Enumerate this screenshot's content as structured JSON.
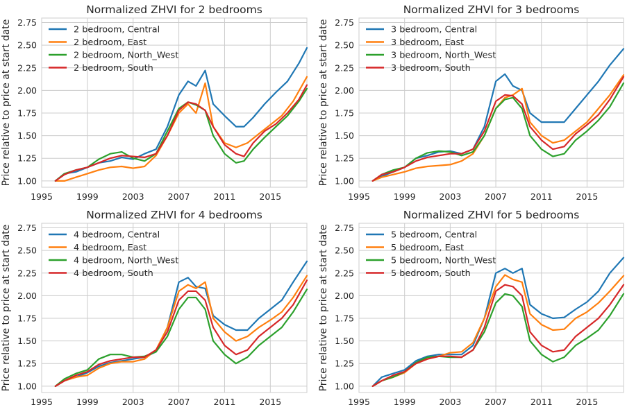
{
  "chart_data": [
    {
      "type": "line",
      "title": "Normalized ZHVI for 2 bedrooms",
      "ylabel": "Price relative to price at start date",
      "xlim": [
        1995,
        2018.2
      ],
      "ylim": [
        0.93,
        2.8
      ],
      "xticks": [
        1995,
        1999,
        2003,
        2007,
        2011,
        2015
      ],
      "yticks": [
        1.0,
        1.25,
        1.5,
        1.75,
        2.0,
        2.25,
        2.5,
        2.75
      ],
      "grid": true,
      "legend": "top-left",
      "series": [
        {
          "name": "2 bedroom, Central",
          "color": "#1f77b4",
          "x": [
            1996.2,
            1997,
            1998,
            1999,
            2000,
            2001,
            2002,
            2003,
            2004,
            2005,
            2006,
            2007,
            2007.8,
            2008.5,
            2009.3,
            2010,
            2011,
            2012,
            2012.7,
            2013.5,
            2014.5,
            2015.5,
            2016.5,
            2017.5,
            2018.2
          ],
          "y": [
            1.0,
            1.08,
            1.1,
            1.15,
            1.2,
            1.22,
            1.26,
            1.24,
            1.3,
            1.35,
            1.6,
            1.95,
            2.1,
            2.05,
            2.22,
            1.85,
            1.72,
            1.6,
            1.6,
            1.7,
            1.85,
            1.98,
            2.1,
            2.3,
            2.47
          ]
        },
        {
          "name": "2 bedroom, East",
          "color": "#ff7f0e",
          "x": [
            1996.2,
            1997,
            1998,
            1999,
            2000,
            2001,
            2002,
            2003,
            2004,
            2005,
            2006,
            2007,
            2007.8,
            2008.5,
            2009.3,
            2010,
            2011,
            2012,
            2013,
            2014,
            2015,
            2016,
            2017,
            2018.2
          ],
          "y": [
            1.0,
            1.0,
            1.04,
            1.08,
            1.12,
            1.15,
            1.16,
            1.14,
            1.16,
            1.28,
            1.5,
            1.75,
            1.85,
            1.75,
            2.08,
            1.6,
            1.42,
            1.37,
            1.42,
            1.52,
            1.62,
            1.72,
            1.88,
            2.15
          ]
        },
        {
          "name": "2 bedroom, North_West",
          "color": "#2ca02c",
          "x": [
            1996.2,
            1997,
            1998,
            1999,
            2000,
            2001,
            2002,
            2003,
            2004,
            2005,
            2006,
            2007,
            2007.8,
            2008.5,
            2009.3,
            2010,
            2011,
            2012,
            2012.7,
            2013.5,
            2014.5,
            2015.5,
            2016.5,
            2017.5,
            2018.2
          ],
          "y": [
            1.0,
            1.08,
            1.12,
            1.15,
            1.24,
            1.3,
            1.32,
            1.25,
            1.22,
            1.3,
            1.55,
            1.8,
            1.87,
            1.84,
            1.78,
            1.5,
            1.3,
            1.2,
            1.22,
            1.35,
            1.48,
            1.6,
            1.72,
            1.88,
            2.02
          ]
        },
        {
          "name": "2 bedroom, South",
          "color": "#d62728",
          "x": [
            1996.2,
            1997,
            1998,
            1999,
            2000,
            2001,
            2002,
            2003,
            2004,
            2005,
            2006,
            2007,
            2007.8,
            2008.5,
            2009.3,
            2010,
            2011,
            2012,
            2012.7,
            2013.5,
            2014.5,
            2015.5,
            2016.5,
            2017.5,
            2018.2
          ],
          "y": [
            1.0,
            1.07,
            1.12,
            1.15,
            1.2,
            1.25,
            1.28,
            1.27,
            1.26,
            1.3,
            1.5,
            1.78,
            1.87,
            1.85,
            1.78,
            1.6,
            1.4,
            1.3,
            1.27,
            1.42,
            1.55,
            1.63,
            1.75,
            1.9,
            2.06
          ]
        }
      ]
    },
    {
      "type": "line",
      "title": "Normalized ZHVI for 3 bedrooms",
      "ylabel": "Price relative to price at start date",
      "xlim": [
        1995,
        2018.2
      ],
      "ylim": [
        0.93,
        2.8
      ],
      "xticks": [
        1995,
        1999,
        2003,
        2007,
        2011,
        2015
      ],
      "yticks": [
        1.0,
        1.25,
        1.5,
        1.75,
        2.0,
        2.25,
        2.5,
        2.75
      ],
      "grid": true,
      "legend": "top-left",
      "series": [
        {
          "name": "3 bedroom, Central",
          "color": "#1f77b4",
          "x": [
            1996.2,
            1997,
            1998,
            1999,
            2000,
            2001,
            2002,
            2003,
            2004,
            2005,
            2006,
            2007,
            2007.8,
            2008.5,
            2009.3,
            2010,
            2011,
            2012,
            2013,
            2014,
            2015,
            2016,
            2017,
            2018.2
          ],
          "y": [
            1.0,
            1.05,
            1.1,
            1.15,
            1.25,
            1.28,
            1.32,
            1.33,
            1.3,
            1.35,
            1.6,
            2.1,
            2.18,
            2.05,
            2.0,
            1.75,
            1.65,
            1.65,
            1.65,
            1.8,
            1.95,
            2.1,
            2.28,
            2.46
          ]
        },
        {
          "name": "3 bedroom, East",
          "color": "#ff7f0e",
          "x": [
            1996.2,
            1997,
            1998,
            1999,
            2000,
            2001,
            2002,
            2003,
            2004,
            2005,
            2006,
            2007,
            2007.8,
            2008.5,
            2009.3,
            2010,
            2011,
            2012,
            2013,
            2014,
            2015,
            2016,
            2017,
            2018.2
          ],
          "y": [
            1.0,
            1.04,
            1.07,
            1.1,
            1.14,
            1.16,
            1.17,
            1.18,
            1.22,
            1.3,
            1.5,
            1.8,
            1.92,
            1.95,
            2.02,
            1.65,
            1.5,
            1.42,
            1.45,
            1.55,
            1.65,
            1.8,
            1.95,
            2.17
          ]
        },
        {
          "name": "3 bedroom, North_West",
          "color": "#2ca02c",
          "x": [
            1996.2,
            1997,
            1998,
            1999,
            2000,
            2001,
            2002,
            2003,
            2004,
            2005,
            2006,
            2007,
            2007.8,
            2008.5,
            2009.3,
            2010,
            2011,
            2012,
            2013,
            2014,
            2015,
            2016,
            2017,
            2018.2
          ],
          "y": [
            1.0,
            1.07,
            1.12,
            1.15,
            1.25,
            1.31,
            1.33,
            1.32,
            1.28,
            1.32,
            1.5,
            1.8,
            1.9,
            1.92,
            1.8,
            1.5,
            1.35,
            1.27,
            1.3,
            1.45,
            1.55,
            1.67,
            1.82,
            2.08
          ]
        },
        {
          "name": "3 bedroom, South",
          "color": "#d62728",
          "x": [
            1996.2,
            1997,
            1998,
            1999,
            2000,
            2001,
            2002,
            2003,
            2004,
            2005,
            2006,
            2007,
            2007.8,
            2008.5,
            2009.3,
            2010,
            2011,
            2012,
            2013,
            2014,
            2015,
            2016,
            2017,
            2018.2
          ],
          "y": [
            1.0,
            1.07,
            1.1,
            1.15,
            1.22,
            1.26,
            1.28,
            1.3,
            1.3,
            1.35,
            1.55,
            1.88,
            1.95,
            1.94,
            1.85,
            1.6,
            1.45,
            1.35,
            1.38,
            1.52,
            1.62,
            1.73,
            1.9,
            2.15
          ]
        }
      ]
    },
    {
      "type": "line",
      "title": "Normalized ZHVI for 4 bedrooms",
      "ylabel": "Price relative to price at start date",
      "xlim": [
        1995,
        2018.2
      ],
      "ylim": [
        0.93,
        2.8
      ],
      "xticks": [
        1995,
        1999,
        2003,
        2007,
        2011,
        2015
      ],
      "yticks": [
        1.0,
        1.25,
        1.5,
        1.75,
        2.0,
        2.25,
        2.5,
        2.75
      ],
      "grid": true,
      "legend": "top-left",
      "series": [
        {
          "name": "4 bedroom, Central",
          "color": "#1f77b4",
          "x": [
            1996.2,
            1997,
            1998,
            1999,
            2000,
            2001,
            2002,
            2003,
            2004,
            2005,
            2006,
            2007,
            2007.8,
            2008.5,
            2009.3,
            2010,
            2011,
            2012,
            2013,
            2014,
            2015,
            2016,
            2017,
            2018.2
          ],
          "y": [
            1.0,
            1.06,
            1.1,
            1.15,
            1.22,
            1.26,
            1.28,
            1.3,
            1.32,
            1.38,
            1.65,
            2.15,
            2.2,
            2.1,
            2.08,
            1.78,
            1.68,
            1.62,
            1.62,
            1.75,
            1.85,
            1.95,
            2.15,
            2.38
          ]
        },
        {
          "name": "4 bedroom, East",
          "color": "#ff7f0e",
          "x": [
            1996.2,
            1997,
            1998,
            1999,
            2000,
            2001,
            2002,
            2003,
            2004,
            2005,
            2006,
            2007,
            2007.8,
            2008.5,
            2009.3,
            2010,
            2011,
            2012,
            2013,
            2014,
            2015,
            2016,
            2017,
            2018.2
          ],
          "y": [
            1.0,
            1.06,
            1.1,
            1.12,
            1.2,
            1.25,
            1.27,
            1.27,
            1.3,
            1.4,
            1.65,
            2.05,
            2.12,
            2.08,
            2.15,
            1.75,
            1.6,
            1.5,
            1.55,
            1.65,
            1.73,
            1.82,
            1.98,
            2.22
          ]
        },
        {
          "name": "4 bedroom, North_West",
          "color": "#2ca02c",
          "x": [
            1996.2,
            1997,
            1998,
            1999,
            2000,
            2001,
            2002,
            2003,
            2004,
            2005,
            2006,
            2007,
            2007.8,
            2008.5,
            2009.3,
            2010,
            2011,
            2012,
            2013,
            2014,
            2015,
            2016,
            2017,
            2018.2
          ],
          "y": [
            1.0,
            1.08,
            1.14,
            1.18,
            1.3,
            1.35,
            1.35,
            1.32,
            1.33,
            1.38,
            1.55,
            1.85,
            1.98,
            1.98,
            1.85,
            1.5,
            1.35,
            1.25,
            1.32,
            1.45,
            1.55,
            1.65,
            1.82,
            2.07
          ]
        },
        {
          "name": "4 bedroom, South",
          "color": "#d62728",
          "x": [
            1996.2,
            1997,
            1998,
            1999,
            2000,
            2001,
            2002,
            2003,
            2004,
            2005,
            2006,
            2007,
            2007.8,
            2008.5,
            2009.3,
            2010,
            2011,
            2012,
            2013,
            2014,
            2015,
            2016,
            2017,
            2018.2
          ],
          "y": [
            1.0,
            1.06,
            1.12,
            1.16,
            1.24,
            1.28,
            1.3,
            1.32,
            1.32,
            1.4,
            1.6,
            1.95,
            2.05,
            2.05,
            1.95,
            1.65,
            1.45,
            1.35,
            1.4,
            1.55,
            1.65,
            1.75,
            1.9,
            2.17
          ]
        }
      ]
    },
    {
      "type": "line",
      "title": "Normalized ZHVI for 5 bedrooms",
      "ylabel": "Price relative to price at start date",
      "xlim": [
        1995,
        2018.2
      ],
      "ylim": [
        0.93,
        2.8
      ],
      "xticks": [
        1995,
        1999,
        2003,
        2007,
        2011,
        2015
      ],
      "yticks": [
        1.0,
        1.25,
        1.5,
        1.75,
        2.0,
        2.25,
        2.5,
        2.75
      ],
      "grid": true,
      "legend": "top-left",
      "series": [
        {
          "name": "5 bedroom, Central",
          "color": "#1f77b4",
          "x": [
            1996.2,
            1997,
            1998,
            1999,
            2000,
            2001,
            2002,
            2003,
            2004,
            2005,
            2006,
            2007,
            2007.8,
            2008.5,
            2009.3,
            2010,
            2011,
            2012,
            2013,
            2014,
            2015,
            2016,
            2017,
            2018.2
          ],
          "y": [
            1.0,
            1.1,
            1.14,
            1.18,
            1.28,
            1.33,
            1.35,
            1.35,
            1.35,
            1.45,
            1.75,
            2.25,
            2.3,
            2.25,
            2.3,
            1.9,
            1.8,
            1.75,
            1.76,
            1.85,
            1.93,
            2.05,
            2.25,
            2.42
          ]
        },
        {
          "name": "5 bedroom, East",
          "color": "#ff7f0e",
          "x": [
            1996.2,
            1997,
            1998,
            1999,
            2000,
            2001,
            2002,
            2003,
            2004,
            2005,
            2006,
            2007,
            2007.8,
            2008.5,
            2009.3,
            2010,
            2011,
            2012,
            2013,
            2014,
            2015,
            2016,
            2017,
            2018.2
          ],
          "y": [
            1.0,
            1.06,
            1.1,
            1.15,
            1.25,
            1.3,
            1.33,
            1.37,
            1.38,
            1.48,
            1.75,
            2.1,
            2.23,
            2.18,
            2.15,
            1.8,
            1.68,
            1.62,
            1.63,
            1.75,
            1.82,
            1.92,
            2.05,
            2.22
          ]
        },
        {
          "name": "5 bedroom, North_West",
          "color": "#2ca02c",
          "x": [
            1996.2,
            1997,
            1998,
            1999,
            2000,
            2001,
            2002,
            2003,
            2004,
            2005,
            2006,
            2007,
            2007.8,
            2008.5,
            2009.3,
            2010,
            2011,
            2012,
            2013,
            2014,
            2015,
            2016,
            2017,
            2018.2
          ],
          "y": [
            1.0,
            1.06,
            1.1,
            1.16,
            1.26,
            1.32,
            1.33,
            1.32,
            1.32,
            1.4,
            1.6,
            1.92,
            2.02,
            2.0,
            1.88,
            1.5,
            1.35,
            1.27,
            1.32,
            1.45,
            1.53,
            1.62,
            1.78,
            2.02
          ]
        },
        {
          "name": "5 bedroom, South",
          "color": "#d62728",
          "x": [
            1996.2,
            1997,
            1998,
            1999,
            2000,
            2001,
            2002,
            2003,
            2004,
            2005,
            2006,
            2007,
            2007.8,
            2008.5,
            2009.3,
            2010,
            2011,
            2012,
            2013,
            2014,
            2015,
            2016,
            2017,
            2018.2
          ],
          "y": [
            1.0,
            1.06,
            1.12,
            1.16,
            1.25,
            1.3,
            1.33,
            1.33,
            1.32,
            1.4,
            1.65,
            2.05,
            2.12,
            2.1,
            2.0,
            1.6,
            1.45,
            1.38,
            1.4,
            1.55,
            1.65,
            1.75,
            1.9,
            2.12
          ]
        }
      ]
    }
  ]
}
